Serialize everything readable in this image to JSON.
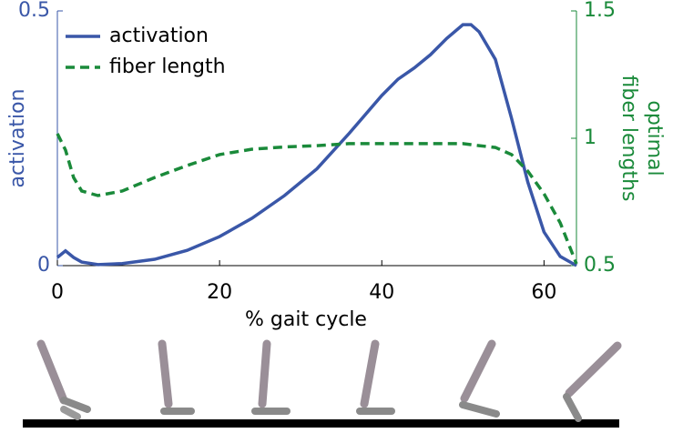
{
  "chart_data": {
    "type": "line",
    "xlabel": "% gait cycle",
    "ylabel": "activation",
    "y2label": [
      "optimal",
      "fiber lengths"
    ],
    "x": [
      0,
      1,
      2,
      3,
      5,
      8,
      12,
      16,
      20,
      24,
      28,
      32,
      36,
      40,
      42,
      44,
      46,
      48,
      50,
      51,
      52,
      54,
      56,
      58,
      60,
      62,
      64
    ],
    "xlim": [
      0,
      64
    ],
    "xticks": [
      0,
      20,
      40,
      60
    ],
    "ylim": [
      0,
      0.5
    ],
    "yticks": [
      0,
      0.5
    ],
    "y2lim": [
      0.5,
      1.5
    ],
    "y2ticks": [
      0.5,
      1,
      1.5
    ],
    "legend": "upper left",
    "series": [
      {
        "name": "activation",
        "color": "#3a57a8",
        "dash": "solid",
        "values": [
          0.016,
          0.029,
          0.016,
          0.007,
          0.002,
          0.004,
          0.0125,
          0.03,
          0.057,
          0.093,
          0.1375,
          0.19,
          0.26,
          0.334,
          0.366,
          0.388,
          0.414,
          0.446,
          0.473,
          0.473,
          0.459,
          0.405,
          0.289,
          0.164,
          0.066,
          0.018,
          0
        ]
      },
      {
        "name": "fiber length",
        "color": "#1a8a3a",
        "dash": "dashed",
        "axis": "y2",
        "values": [
          1.018,
          0.954,
          0.846,
          0.793,
          0.775,
          0.793,
          0.846,
          0.893,
          0.936,
          0.957,
          0.966,
          0.971,
          0.979,
          0.979,
          0.979,
          0.979,
          0.979,
          0.979,
          0.979,
          0.975,
          0.971,
          0.964,
          0.936,
          0.871,
          0.782,
          0.668,
          0.507
        ]
      }
    ]
  }
}
